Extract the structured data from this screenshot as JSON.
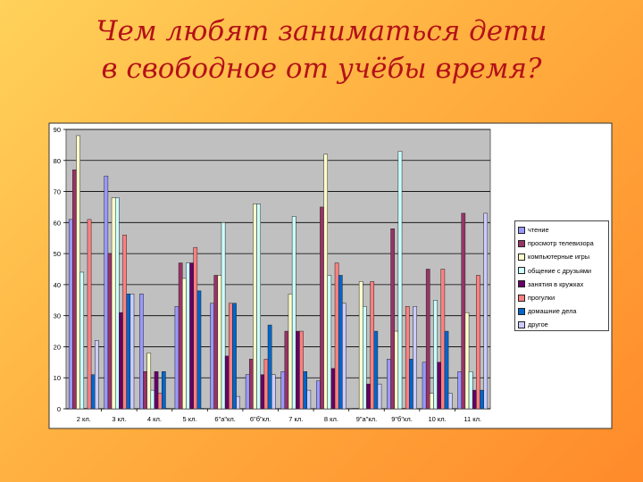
{
  "slide": {
    "title_line1": "Чем любят заниматься дети",
    "title_line2": "в свободное от учёбы время?"
  },
  "chart_data": {
    "type": "bar",
    "ylim": [
      0,
      90
    ],
    "yticks": [
      0,
      10,
      20,
      30,
      40,
      50,
      60,
      70,
      80,
      90
    ],
    "grid": true,
    "legend_position": "right",
    "categories": [
      "2 кл.",
      "3 кл.",
      "4 кл.",
      "5 кл.",
      "6\"а\"кл.",
      "6\"б\"кл.",
      "7 кл.",
      "8 кл.",
      "9\"а\"кл.",
      "9\"б\"кл.",
      "10 кл.",
      "11 кл."
    ],
    "series": [
      {
        "name": "чтение",
        "color": "#9999ff",
        "values": [
          61,
          75,
          37,
          33,
          34,
          11,
          12,
          9,
          0,
          16,
          15,
          12
        ]
      },
      {
        "name": "просмотр телевизора",
        "color": "#993366",
        "values": [
          77,
          50,
          12,
          47,
          43,
          16,
          25,
          65,
          0,
          58,
          45,
          63
        ]
      },
      {
        "name": "компьютерные игры",
        "color": "#ffffcc",
        "values": [
          88,
          68,
          18,
          42,
          43,
          66,
          37,
          82,
          41,
          25,
          5,
          31
        ]
      },
      {
        "name": "общение с друзьями",
        "color": "#ccffff",
        "values": [
          44,
          68,
          6,
          47,
          60,
          66,
          62,
          43,
          33,
          83,
          35,
          12
        ]
      },
      {
        "name": "занятия в кружках",
        "color": "#660066",
        "values": [
          0,
          31,
          12,
          47,
          17,
          11,
          25,
          13,
          8,
          0,
          15,
          6
        ]
      },
      {
        "name": "прогулки",
        "color": "#ff8080",
        "values": [
          61,
          56,
          5,
          52,
          34,
          16,
          25,
          47,
          41,
          33,
          45,
          43
        ]
      },
      {
        "name": "домашние дела",
        "color": "#0066cc",
        "values": [
          11,
          37,
          12,
          38,
          34,
          27,
          12,
          43,
          25,
          16,
          25,
          6
        ]
      },
      {
        "name": "другое",
        "color": "#ccccff",
        "values": [
          22,
          37,
          0,
          0,
          4,
          11,
          6,
          34,
          8,
          33,
          5,
          63
        ]
      }
    ]
  }
}
